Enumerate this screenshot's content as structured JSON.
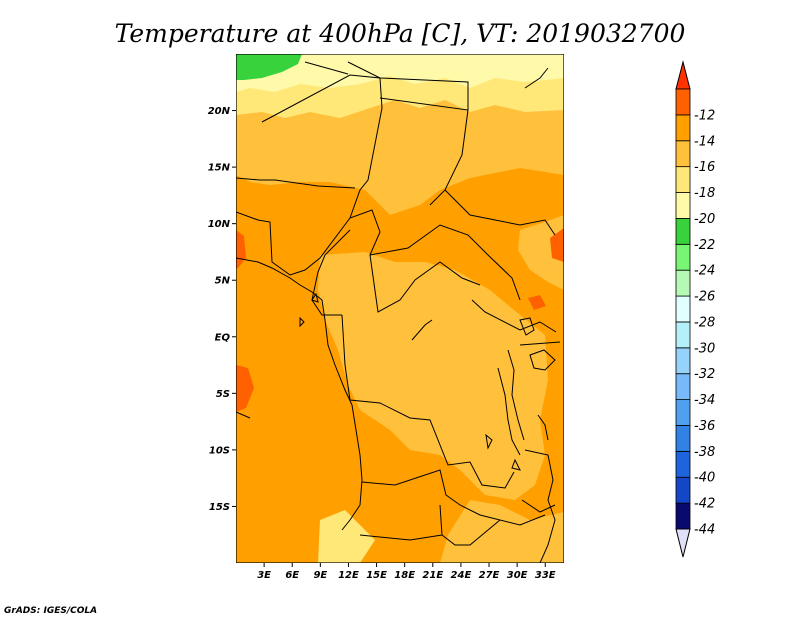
{
  "title": "Temperature at 400hPa [C], VT: 2019032700",
  "credit": "GrADS: IGES/COLA",
  "map": {
    "lon_range": [
      0,
      35
    ],
    "lat_range": [
      -20,
      25
    ],
    "lat_ticks": [
      {
        "lat": 20,
        "label": "20N"
      },
      {
        "lat": 15,
        "label": "15N"
      },
      {
        "lat": 10,
        "label": "10N"
      },
      {
        "lat": 5,
        "label": "5N"
      },
      {
        "lat": 0,
        "label": "EQ"
      },
      {
        "lat": -5,
        "label": "5S"
      },
      {
        "lat": -10,
        "label": "10S"
      },
      {
        "lat": -15,
        "label": "15S"
      }
    ],
    "lon_ticks": [
      {
        "lon": 3,
        "label": "3E"
      },
      {
        "lon": 6,
        "label": "6E"
      },
      {
        "lon": 9,
        "label": "9E"
      },
      {
        "lon": 12,
        "label": "12E"
      },
      {
        "lon": 15,
        "label": "15E"
      },
      {
        "lon": 18,
        "label": "18E"
      },
      {
        "lon": 21,
        "label": "21E"
      },
      {
        "lon": 24,
        "label": "24E"
      },
      {
        "lon": 27,
        "label": "27E"
      },
      {
        "lon": 30,
        "label": "30E"
      },
      {
        "lon": 33,
        "label": "33E"
      }
    ]
  },
  "colorbar": {
    "colors": [
      "#e0e0f8",
      "#0a0a6e",
      "#1446c8",
      "#1e64dc",
      "#3282e6",
      "#50a0f0",
      "#78b9fa",
      "#96d2fa",
      "#b4f0fa",
      "#e1ffff",
      "#b4fab4",
      "#78f573",
      "#37d23c",
      "#fffaaa",
      "#ffe878",
      "#ffc03c",
      "#ffa000",
      "#ff6000",
      "#ff3200"
    ],
    "labels": [
      "-44",
      "-42",
      "-40",
      "-38",
      "-36",
      "-34",
      "-32",
      "-30",
      "-28",
      "-26",
      "-24",
      "-22",
      "-20",
      "-18",
      "-16",
      "-14",
      "-12"
    ]
  },
  "colors": {
    "t_lt_22": "#fffaaa",
    "t_22_20": "#ffe878",
    "t_20_18": "#ffc03c",
    "t_18_16": "#ffa000",
    "t_16_14": "#ff6000",
    "t_green": "#37d23c"
  }
}
